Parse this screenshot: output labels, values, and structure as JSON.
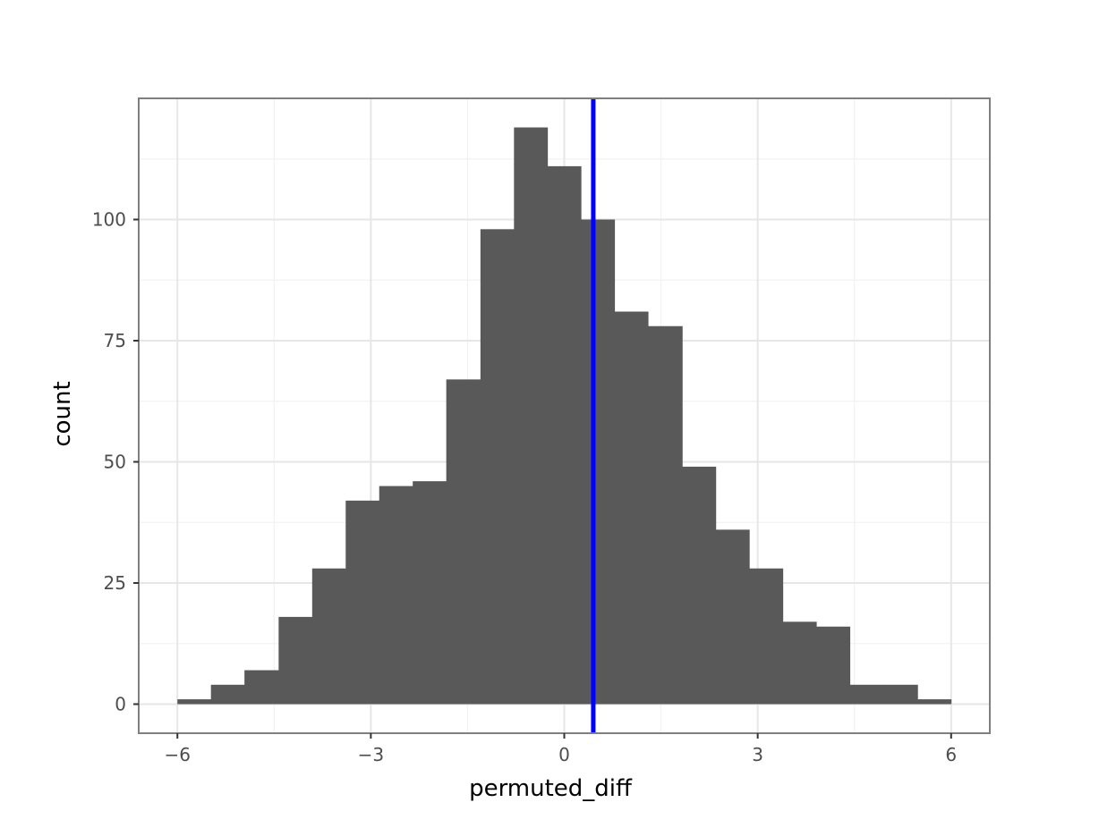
{
  "chart_data": {
    "type": "bar",
    "subtype": "histogram",
    "xlabel": "permuted_diff",
    "ylabel": "count",
    "xlim": [
      -6.6,
      6.6
    ],
    "ylim": [
      -6,
      125
    ],
    "x_ticks": [
      -6,
      -3,
      0,
      3,
      6
    ],
    "x_tick_labels": [
      "−6",
      "−3",
      "0",
      "3",
      "6"
    ],
    "y_ticks": [
      0,
      25,
      50,
      75,
      100
    ],
    "y_tick_labels": [
      "0",
      "25",
      "50",
      "75",
      "100"
    ],
    "bins": [
      {
        "x0": -6.0,
        "x1": -5.48,
        "count": 1
      },
      {
        "x0": -5.48,
        "x1": -4.96,
        "count": 4
      },
      {
        "x0": -4.96,
        "x1": -4.43,
        "count": 7
      },
      {
        "x0": -4.43,
        "x1": -3.91,
        "count": 18
      },
      {
        "x0": -3.91,
        "x1": -3.39,
        "count": 28
      },
      {
        "x0": -3.39,
        "x1": -2.87,
        "count": 42
      },
      {
        "x0": -2.87,
        "x1": -2.35,
        "count": 45
      },
      {
        "x0": -2.35,
        "x1": -1.83,
        "count": 46
      },
      {
        "x0": -1.83,
        "x1": -1.3,
        "count": 67
      },
      {
        "x0": -1.3,
        "x1": -0.78,
        "count": 98
      },
      {
        "x0": -0.78,
        "x1": -0.26,
        "count": 119
      },
      {
        "x0": -0.26,
        "x1": 0.26,
        "count": 111
      },
      {
        "x0": 0.26,
        "x1": 0.78,
        "count": 100
      },
      {
        "x0": 0.78,
        "x1": 1.3,
        "count": 81
      },
      {
        "x0": 1.3,
        "x1": 1.83,
        "count": 78
      },
      {
        "x0": 1.83,
        "x1": 2.35,
        "count": 49
      },
      {
        "x0": 2.35,
        "x1": 2.87,
        "count": 36
      },
      {
        "x0": 2.87,
        "x1": 3.39,
        "count": 28
      },
      {
        "x0": 3.39,
        "x1": 3.91,
        "count": 17
      },
      {
        "x0": 3.91,
        "x1": 4.43,
        "count": 16
      },
      {
        "x0": 4.43,
        "x1": 4.96,
        "count": 4
      },
      {
        "x0": 4.96,
        "x1": 5.48,
        "count": 4
      },
      {
        "x0": 5.48,
        "x1": 6.0,
        "count": 1
      }
    ],
    "vline": {
      "x": 0.45,
      "color": "#0000ff"
    },
    "bar_color": "#595959",
    "grid": true,
    "legend": "none"
  }
}
